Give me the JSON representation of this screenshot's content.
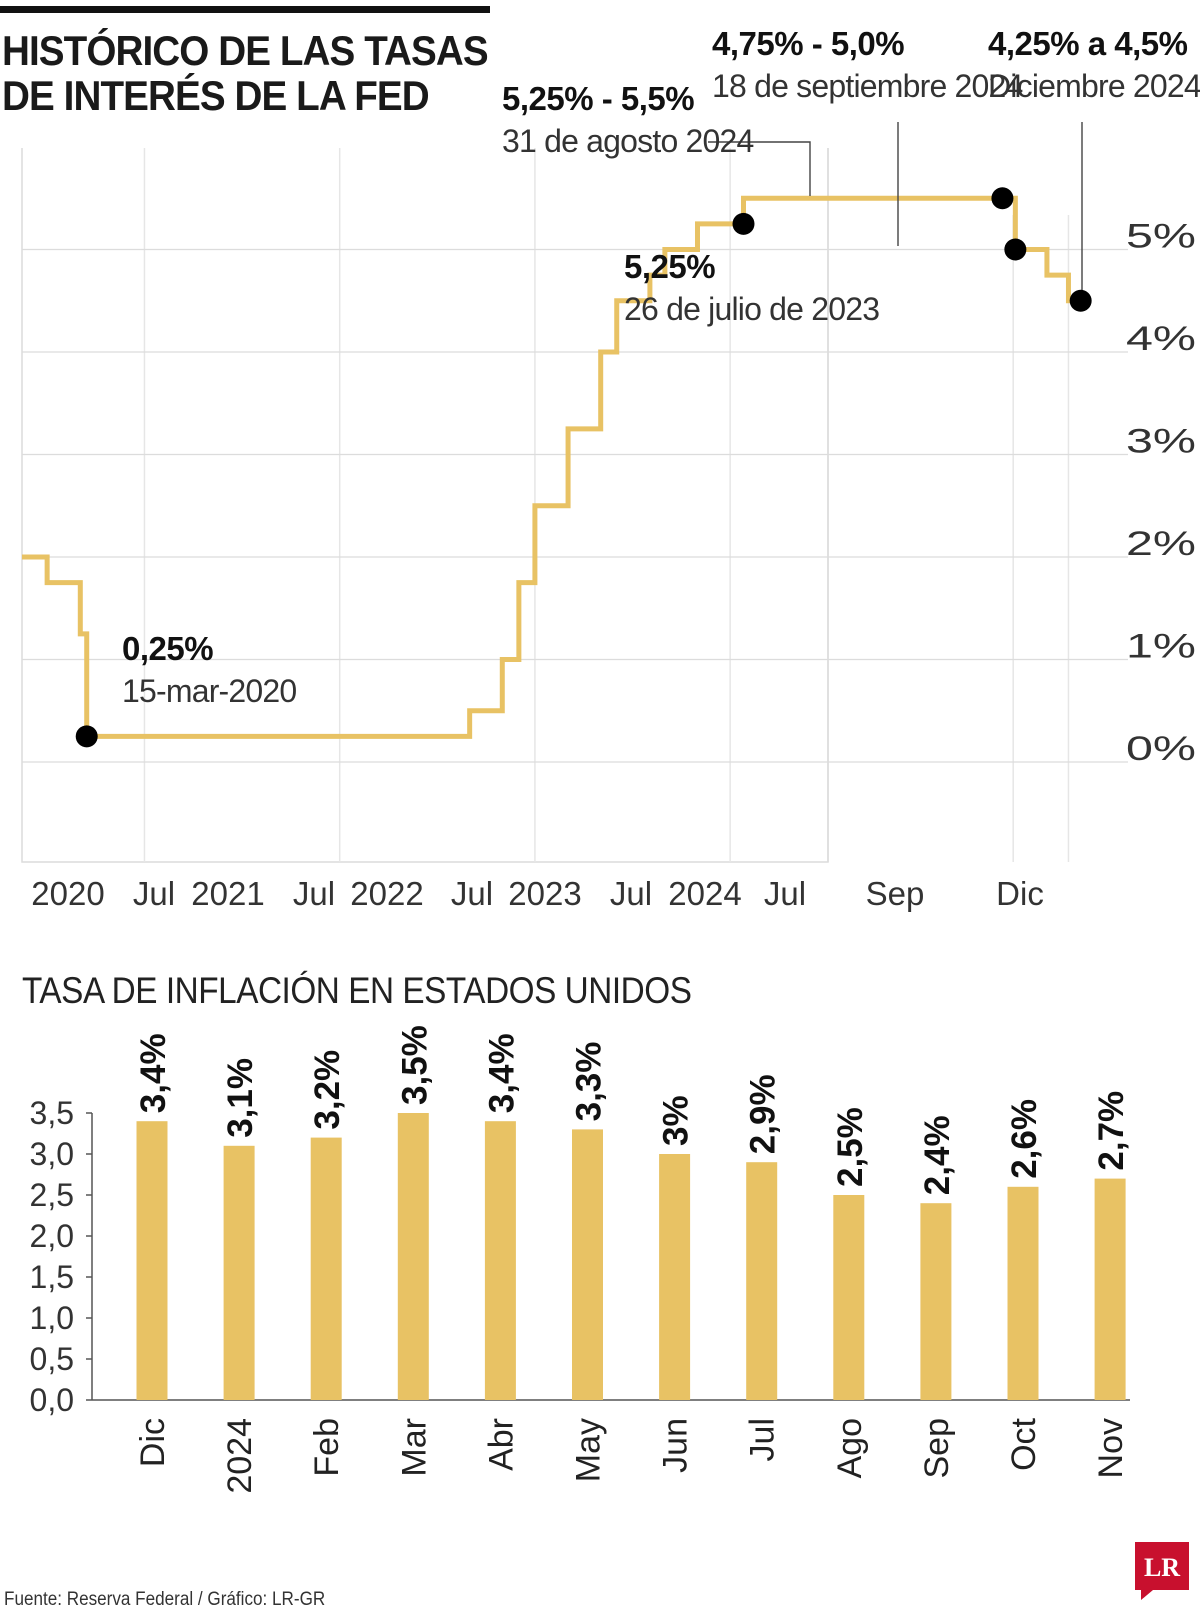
{
  "header": {
    "title_line1": "HISTÓRICO DE LAS TASAS",
    "title_line2": "DE INTERÉS DE LA FED"
  },
  "chart_data": [
    {
      "type": "line",
      "step": true,
      "title": "HISTÓRICO DE LAS TASAS DE INTERÉS DE LA FED",
      "xlabel": "",
      "ylabel": "",
      "ylim": [
        0,
        5.5
      ],
      "ytick_labels": [
        "0%",
        "1%",
        "2%",
        "3%",
        "4%",
        "5%"
      ],
      "xtick_labels": [
        "2020",
        "Jul",
        "2021",
        "Jul",
        "2022",
        "Jul",
        "2023",
        "Jul",
        "2024",
        "Jul",
        "Sep",
        "Dic"
      ],
      "grid": true,
      "color": "#e8c264",
      "series": [
        {
          "x": [
            "2019-11",
            "2020-01",
            "2020-03-03",
            "2020-03-15",
            "2022-03",
            "2022-05",
            "2022-06",
            "2022-07",
            "2022-09",
            "2022-11",
            "2022-12",
            "2023-02",
            "2023-03",
            "2023-05",
            "2023-07-26",
            "2024-08-31",
            "2024-09-18",
            "2024-11",
            "2024-12"
          ],
          "y": [
            2.0,
            1.75,
            1.25,
            0.25,
            0.5,
            1.0,
            1.75,
            2.5,
            3.25,
            4.0,
            4.5,
            4.75,
            5.0,
            5.25,
            5.5,
            5.5,
            5.0,
            4.75,
            4.5
          ]
        }
      ],
      "annotations": [
        {
          "value": "0,25%",
          "date": "15-mar-2020"
        },
        {
          "value": "5,25%",
          "date": "26 de julio de 2023"
        },
        {
          "value": "5,25% - 5,5%",
          "date": "31 de agosto 2024"
        },
        {
          "value": "4,75% - 5,0%",
          "date": "18 de septiembre 2024"
        },
        {
          "value": "4,25% a 4,5%",
          "date": "Diciembre 2024"
        }
      ]
    },
    {
      "type": "bar",
      "title": "TASA DE INFLACIÓN EN ESTADOS UNIDOS",
      "xlabel": "",
      "ylabel": "",
      "ylim": [
        0,
        3.5
      ],
      "ytick_labels": [
        "0,0",
        "0,5",
        "1,0",
        "1,5",
        "2,0",
        "2,5",
        "3,0",
        "3,5"
      ],
      "categories": [
        "Dic",
        "2024",
        "Feb",
        "Mar",
        "Abr",
        "May",
        "Jun",
        "Jul",
        "Ago",
        "Sep",
        "Oct",
        "Nov"
      ],
      "values": [
        3.4,
        3.1,
        3.2,
        3.5,
        3.4,
        3.3,
        3.0,
        2.9,
        2.5,
        2.4,
        2.6,
        2.7
      ],
      "data_labels": [
        "3,4%",
        "3,1%",
        "3,2%",
        "3,5%",
        "3,4%",
        "3,3%",
        "3%",
        "2,9%",
        "2,5%",
        "2,4%",
        "2,6%",
        "2,7%"
      ],
      "color": "#e8c264"
    }
  ],
  "footer": {
    "source": "Fuente: Reserva Federal / Gráfico: LR-GR",
    "logo_text": "LR"
  }
}
